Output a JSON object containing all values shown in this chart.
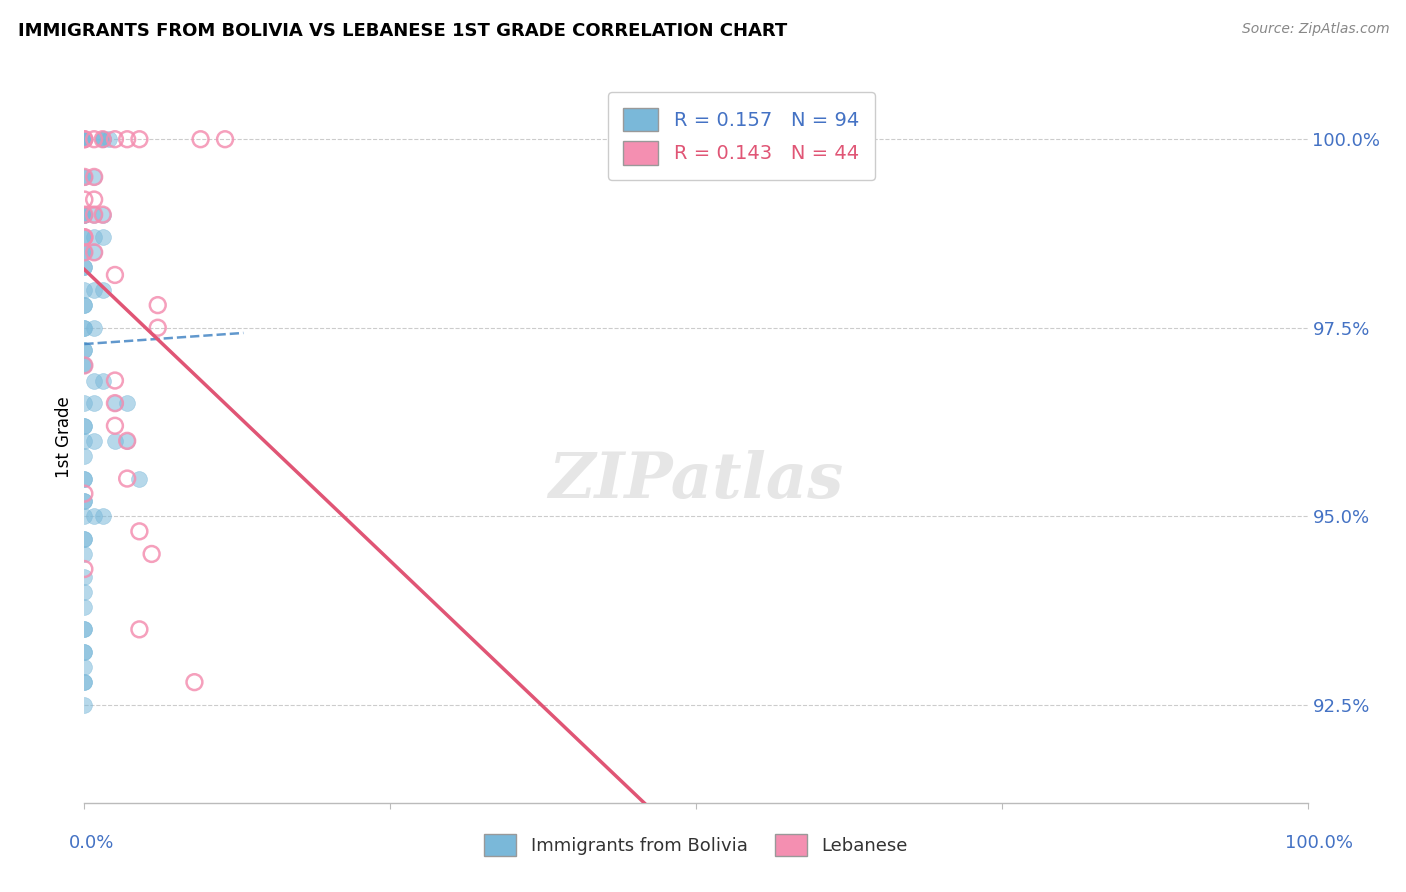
{
  "title": "IMMIGRANTS FROM BOLIVIA VS LEBANESE 1ST GRADE CORRELATION CHART",
  "source": "Source: ZipAtlas.com",
  "ylabel": "1st Grade",
  "watermark": "ZIPatlas",
  "legend_box": {
    "blue_label": "R = 0.157   N = 94",
    "pink_label": "R = 0.143   N = 44"
  },
  "bottom_legend": [
    "Immigrants from Bolivia",
    "Lebanese"
  ],
  "ytick_labels": [
    "92.5%",
    "95.0%",
    "97.5%",
    "100.0%"
  ],
  "ytick_values": [
    92.5,
    95.0,
    97.5,
    100.0
  ],
  "xlim": [
    0.0,
    100.0
  ],
  "ylim": [
    91.2,
    100.9
  ],
  "blue_color": "#7ab8d9",
  "pink_color": "#f48fb1",
  "blue_line_color": "#3a7fc1",
  "pink_line_color": "#e05575",
  "blue_scatter_x": [
    0.0,
    0.0,
    0.0,
    0.0,
    0.0,
    0.0,
    0.0,
    0.0,
    0.0,
    0.0,
    0.0,
    0.0,
    0.0,
    0.0,
    0.0,
    1.5,
    1.5,
    1.5,
    2.0,
    0.0,
    0.0,
    0.8,
    0.0,
    0.0,
    0.0,
    0.8,
    1.5,
    0.0,
    0.0,
    0.8,
    1.5,
    0.0,
    0.0,
    0.8,
    0.0,
    0.0,
    0.0,
    0.8,
    1.5,
    0.0,
    0.0,
    0.0,
    0.0,
    0.8,
    0.0,
    0.0,
    0.0,
    0.0,
    0.8,
    1.5,
    0.0,
    0.8,
    0.0,
    0.0,
    0.0,
    0.8,
    0.0,
    0.0,
    0.0,
    0.0,
    0.0,
    0.0,
    0.8,
    1.5,
    0.0,
    0.0,
    0.0,
    0.0,
    0.0,
    0.0,
    0.0,
    0.0,
    0.0,
    0.0,
    0.0,
    0.0,
    0.0,
    2.5,
    2.5,
    3.5,
    3.5,
    4.5,
    0.0
  ],
  "blue_scatter_y": [
    100.0,
    100.0,
    100.0,
    100.0,
    100.0,
    100.0,
    100.0,
    100.0,
    100.0,
    100.0,
    100.0,
    100.0,
    100.0,
    100.0,
    100.0,
    100.0,
    100.0,
    100.0,
    100.0,
    99.5,
    99.5,
    99.5,
    99.0,
    99.0,
    99.0,
    99.0,
    99.0,
    98.7,
    98.7,
    98.7,
    98.7,
    98.5,
    98.5,
    98.5,
    98.3,
    98.3,
    98.0,
    98.0,
    98.0,
    97.8,
    97.8,
    97.5,
    97.5,
    97.5,
    97.2,
    97.2,
    97.0,
    97.0,
    96.8,
    96.8,
    96.5,
    96.5,
    96.2,
    96.2,
    96.0,
    96.0,
    95.8,
    95.5,
    95.5,
    95.2,
    95.2,
    95.0,
    95.0,
    95.0,
    94.7,
    94.7,
    94.5,
    94.2,
    94.0,
    93.8,
    93.5,
    93.5,
    93.2,
    93.2,
    93.0,
    92.8,
    92.8,
    96.5,
    96.0,
    96.5,
    96.0,
    95.5,
    92.5
  ],
  "pink_scatter_x": [
    0.0,
    0.0,
    0.8,
    1.5,
    2.5,
    3.5,
    4.5,
    9.5,
    11.5,
    0.0,
    0.8,
    0.0,
    0.8,
    0.0,
    0.8,
    1.5,
    0.0,
    0.0,
    0.0,
    0.8,
    2.5,
    6.0,
    6.0,
    0.0,
    2.5,
    2.5,
    2.5,
    3.5,
    3.5,
    0.0,
    4.5,
    5.5,
    0.0,
    4.5,
    9.0
  ],
  "pink_scatter_y": [
    100.0,
    100.0,
    100.0,
    100.0,
    100.0,
    100.0,
    100.0,
    100.0,
    100.0,
    99.5,
    99.5,
    99.2,
    99.2,
    99.0,
    99.0,
    99.0,
    98.7,
    98.7,
    98.5,
    98.5,
    98.2,
    97.8,
    97.5,
    97.0,
    96.8,
    96.5,
    96.2,
    96.0,
    95.5,
    95.3,
    94.8,
    94.5,
    94.3,
    93.5,
    92.8
  ],
  "blue_trendline": [
    0.0,
    100.0,
    100.0,
    100.6
  ],
  "pink_trendline": [
    0.0,
    97.5,
    100.0,
    100.0
  ]
}
